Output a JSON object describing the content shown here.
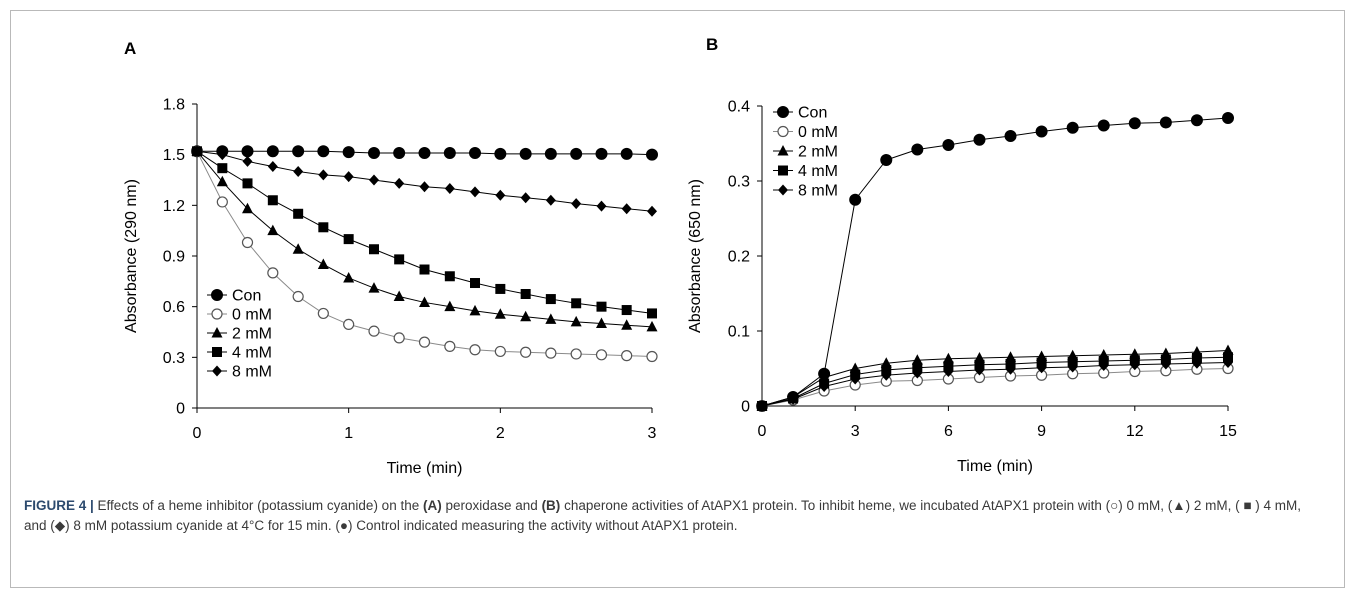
{
  "figure": {
    "caption_label": "FIGURE 4 |",
    "caption_parts": [
      {
        "t": " Effects of a heme inhibitor (potassium cyanide) on the ",
        "b": false
      },
      {
        "t": "(A)",
        "b": true
      },
      {
        "t": " peroxidase and ",
        "b": false
      },
      {
        "t": "(B)",
        "b": true
      },
      {
        "t": " chaperone activities of AtAPX1 protein. To inhibit heme, we incubated AtAPX1 protein with (○) 0 mM, (▲) 2 mM, ( ■ ) 4 mM, and (◆) 8 mM potassium cyanide at 4°C for 15 min. (●) Control indicated measuring the activity without AtAPX1 protein.",
        "b": false
      }
    ]
  },
  "chart_data": [
    {
      "panel": "A",
      "type": "line",
      "xlabel": "Time (min)",
      "ylabel": "Absorbance (290 nm)",
      "xlim": [
        0,
        3
      ],
      "ylim": [
        0,
        1.8
      ],
      "xticks": [
        0,
        1,
        2,
        3
      ],
      "yticks": [
        0,
        0.3,
        0.6,
        0.9,
        1.2,
        1.5,
        1.8
      ],
      "ytick_labels": [
        "0",
        "0.3",
        "0.6",
        "0.9",
        "1.2",
        "1.5",
        "1.8"
      ],
      "grid": false,
      "legend_position": "bottom-left",
      "x": [
        0,
        0.167,
        0.333,
        0.5,
        0.667,
        0.833,
        1.0,
        1.167,
        1.333,
        1.5,
        1.667,
        1.833,
        2.0,
        2.167,
        2.333,
        2.5,
        2.667,
        2.833,
        3.0
      ],
      "series": [
        {
          "name": "Con",
          "marker": "circle-filled",
          "values": [
            1.52,
            1.52,
            1.52,
            1.52,
            1.52,
            1.52,
            1.515,
            1.51,
            1.51,
            1.51,
            1.51,
            1.51,
            1.505,
            1.505,
            1.505,
            1.505,
            1.505,
            1.505,
            1.5
          ]
        },
        {
          "name": "0 mM",
          "marker": "circle-open",
          "values": [
            1.52,
            1.22,
            0.98,
            0.8,
            0.66,
            0.56,
            0.495,
            0.455,
            0.415,
            0.39,
            0.365,
            0.345,
            0.335,
            0.33,
            0.325,
            0.32,
            0.315,
            0.31,
            0.305
          ]
        },
        {
          "name": "2 mM",
          "marker": "triangle-filled",
          "values": [
            1.52,
            1.34,
            1.18,
            1.05,
            0.94,
            0.85,
            0.77,
            0.71,
            0.66,
            0.625,
            0.6,
            0.575,
            0.555,
            0.54,
            0.525,
            0.51,
            0.5,
            0.49,
            0.48
          ]
        },
        {
          "name": "4 mM",
          "marker": "square-filled",
          "values": [
            1.52,
            1.42,
            1.33,
            1.23,
            1.15,
            1.07,
            1.0,
            0.94,
            0.88,
            0.82,
            0.78,
            0.74,
            0.705,
            0.675,
            0.645,
            0.62,
            0.6,
            0.58,
            0.56
          ]
        },
        {
          "name": "8 mM",
          "marker": "diamond-filled",
          "values": [
            1.52,
            1.5,
            1.46,
            1.43,
            1.4,
            1.38,
            1.37,
            1.35,
            1.33,
            1.31,
            1.3,
            1.28,
            1.26,
            1.245,
            1.23,
            1.21,
            1.195,
            1.18,
            1.165
          ]
        }
      ]
    },
    {
      "panel": "B",
      "type": "line",
      "xlabel": "Time (min)",
      "ylabel": "Absorbance (650 nm)",
      "xlim": [
        0,
        15
      ],
      "ylim": [
        0,
        0.4
      ],
      "xticks": [
        0,
        3,
        6,
        9,
        12,
        15
      ],
      "yticks": [
        0,
        0.1,
        0.2,
        0.3,
        0.4
      ],
      "ytick_labels": [
        "0",
        "0.1",
        "0.2",
        "0.3",
        "0.4"
      ],
      "grid": false,
      "legend_position": "top-left",
      "x": [
        0,
        1,
        2,
        3,
        4,
        5,
        6,
        7,
        8,
        9,
        10,
        11,
        12,
        13,
        14,
        15
      ],
      "series": [
        {
          "name": "Con",
          "marker": "circle-filled",
          "values": [
            0,
            0.012,
            0.043,
            0.275,
            0.328,
            0.342,
            0.348,
            0.355,
            0.36,
            0.366,
            0.371,
            0.374,
            0.377,
            0.378,
            0.381,
            0.384
          ]
        },
        {
          "name": "0 mM",
          "marker": "circle-open",
          "values": [
            0,
            0.008,
            0.02,
            0.028,
            0.033,
            0.034,
            0.036,
            0.038,
            0.04,
            0.041,
            0.043,
            0.044,
            0.046,
            0.047,
            0.049,
            0.05
          ]
        },
        {
          "name": "2 mM",
          "marker": "triangle-filled",
          "values": [
            0,
            0.012,
            0.038,
            0.05,
            0.057,
            0.061,
            0.063,
            0.064,
            0.065,
            0.066,
            0.067,
            0.068,
            0.069,
            0.07,
            0.072,
            0.074
          ]
        },
        {
          "name": "4 mM",
          "marker": "square-filled",
          "values": [
            0,
            0.01,
            0.03,
            0.042,
            0.048,
            0.051,
            0.053,
            0.055,
            0.056,
            0.058,
            0.059,
            0.06,
            0.061,
            0.062,
            0.064,
            0.065
          ]
        },
        {
          "name": "8 mM",
          "marker": "diamond-filled",
          "values": [
            0,
            0.009,
            0.026,
            0.036,
            0.041,
            0.044,
            0.046,
            0.048,
            0.049,
            0.051,
            0.052,
            0.054,
            0.055,
            0.056,
            0.057,
            0.058
          ]
        }
      ]
    }
  ]
}
